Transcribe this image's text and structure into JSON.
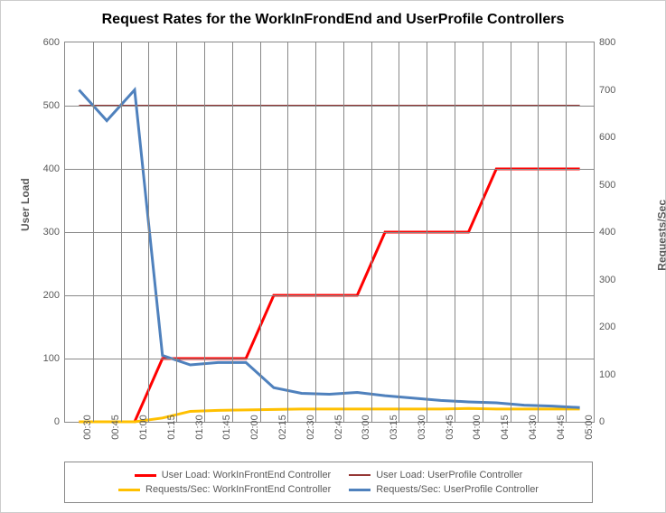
{
  "chart": {
    "type": "line",
    "title": "Request Rates for the WorkInFrondEnd and UserProfile Controllers",
    "title_fontsize": 16,
    "background_color": "#ffffff",
    "grid_color": "#888888",
    "x_categories": [
      "00:30",
      "00:45",
      "01:00",
      "01:15",
      "01:30",
      "01:45",
      "02:00",
      "02:15",
      "02:30",
      "02:45",
      "03:00",
      "03:15",
      "03:30",
      "03:45",
      "04:00",
      "04:15",
      "04:30",
      "04:45",
      "05:00"
    ],
    "left_axis": {
      "title": "User Load",
      "min": 0,
      "max": 600,
      "step": 100,
      "label_fontsize": 11
    },
    "right_axis": {
      "title": "Requests/Sec",
      "min": 0,
      "max": 800,
      "step": 100,
      "label_fontsize": 11
    },
    "series": [
      {
        "name": "User Load: WorkInFrontEnd Controller",
        "axis": "left",
        "color": "#ff0000",
        "width": 3,
        "data": [
          0,
          0,
          0,
          100,
          100,
          100,
          100,
          200,
          200,
          200,
          200,
          300,
          300,
          300,
          300,
          400,
          400,
          400,
          400
        ]
      },
      {
        "name": "User Load: UserProfile Controller",
        "axis": "left",
        "color": "#953735",
        "width": 2,
        "data": [
          500,
          500,
          500,
          500,
          500,
          500,
          500,
          500,
          500,
          500,
          500,
          500,
          500,
          500,
          500,
          500,
          500,
          500,
          500
        ]
      },
      {
        "name": "Requests/Sec: WorkInFrontEnd Controller",
        "axis": "right",
        "color": "#ffc000",
        "width": 3,
        "data": [
          0,
          0,
          0,
          8,
          22,
          24,
          25,
          26,
          27,
          27,
          27,
          27,
          27,
          27,
          28,
          27,
          27,
          27,
          27
        ]
      },
      {
        "name": "Requests/Sec: UserProfile Controller",
        "axis": "right",
        "color": "#4f81bd",
        "width": 3,
        "data": [
          700,
          635,
          700,
          140,
          120,
          125,
          125,
          72,
          60,
          58,
          62,
          55,
          50,
          45,
          42,
          40,
          35,
          33,
          30
        ]
      }
    ]
  }
}
